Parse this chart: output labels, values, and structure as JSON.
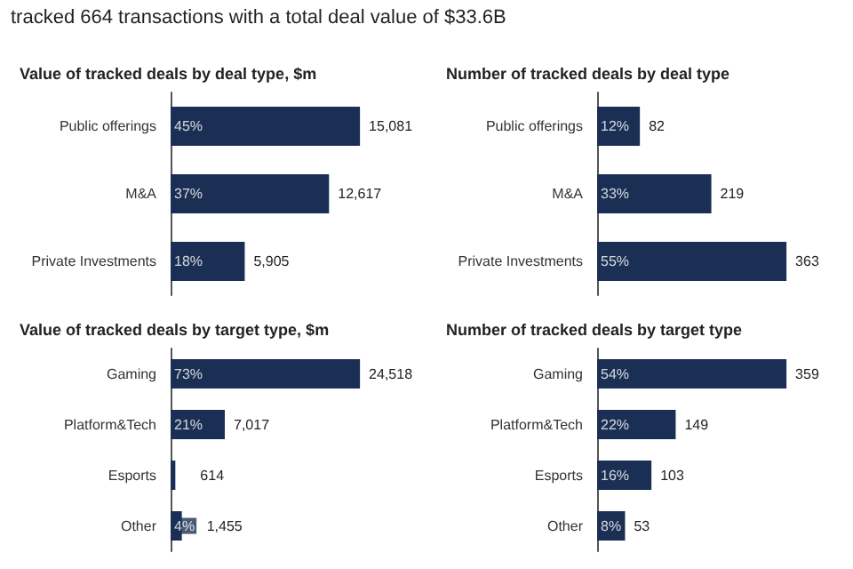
{
  "chart_data": [
    {
      "type": "other",
      "title": "tracked 664 transactions with a total deal value of $33.6B"
    },
    {
      "type": "bar",
      "orientation": "horizontal",
      "title": "Value of tracked deals by deal type, $m",
      "categories": [
        "Public offerings",
        "M&A",
        "Private Investments"
      ],
      "values": [
        15081,
        12617,
        5905
      ],
      "value_labels": [
        "15,081",
        "12,617",
        "5,905"
      ],
      "color": "#1b2f54",
      "annotations": [
        {
          "text": "45%",
          "y": "Public offerings"
        },
        {
          "text": "37%",
          "y": "M&A"
        },
        {
          "text": "18%",
          "y": "Private Investments"
        }
      ]
    },
    {
      "type": "bar",
      "orientation": "horizontal",
      "title": "Number of tracked deals by deal type",
      "categories": [
        "Public offerings",
        "M&A",
        "Private Investments"
      ],
      "values": [
        82,
        219,
        363
      ],
      "color": "#1b2f54",
      "data_labels": true,
      "annotations": [
        {
          "text": "12%",
          "y": "Public offerings"
        },
        {
          "text": "33%",
          "y": "M&A"
        },
        {
          "text": "55%",
          "y": "Private Investments"
        }
      ]
    },
    {
      "type": "bar",
      "orientation": "horizontal",
      "title": "Value of tracked deals by target type, $m",
      "categories": [
        "Gaming",
        "Platform&Tech",
        "Esports",
        "Other"
      ],
      "values": [
        24518,
        7017,
        614,
        1455
      ],
      "value_labels": [
        "24,518",
        "7,017",
        "614",
        "1,455"
      ],
      "color": "#1b2f54",
      "annotations": [
        {
          "text": "73%",
          "y": "Gaming"
        },
        {
          "text": "21%",
          "y": "Platform&Tech"
        },
        {
          "text": "4%",
          "y": "Other"
        }
      ]
    },
    {
      "type": "bar",
      "orientation": "horizontal",
      "title": "Number of tracked deals by target type",
      "categories": [
        "Gaming",
        "Platform&Tech",
        "Esports",
        "Other"
      ],
      "values": [
        359,
        149,
        103,
        53
      ],
      "color": "#1b2f54",
      "data_labels": true,
      "annotations": [
        {
          "text": "54%",
          "y": "Gaming"
        },
        {
          "text": "22%",
          "y": "Platform&Tech"
        },
        {
          "text": "16%",
          "y": "Esports"
        },
        {
          "text": "8%",
          "y": "Other"
        }
      ]
    }
  ]
}
